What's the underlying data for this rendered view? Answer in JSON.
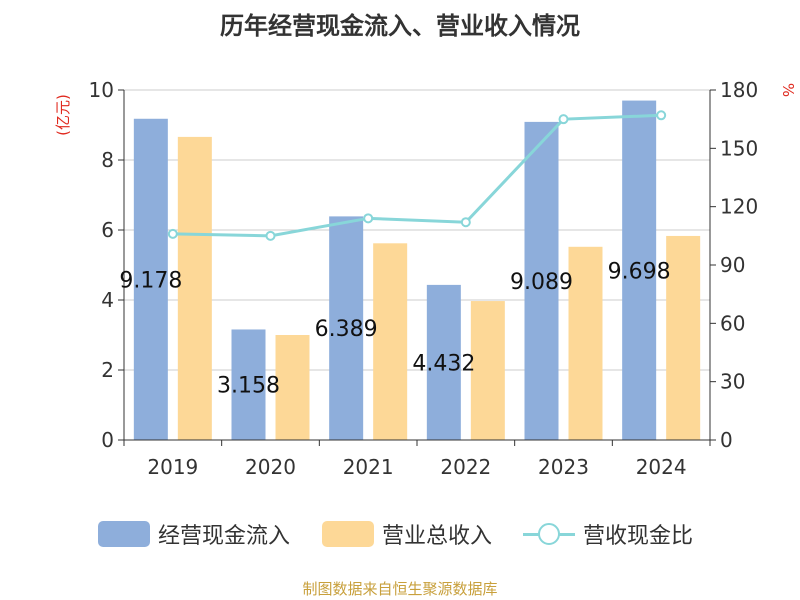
{
  "chart_data": {
    "type": "bar",
    "title": "历年经营现金流入、营业收入情况",
    "categories": [
      "2019",
      "2020",
      "2021",
      "2022",
      "2023",
      "2024"
    ],
    "series": [
      {
        "name": "经营现金流入",
        "type": "bar",
        "axis": "left",
        "color": "#8eaedb",
        "values": [
          9.178,
          3.158,
          6.389,
          4.432,
          9.089,
          9.698
        ]
      },
      {
        "name": "营业总收入",
        "type": "bar",
        "axis": "left",
        "color": "#fdd897",
        "values": [
          8.66,
          3.0,
          5.62,
          3.97,
          5.52,
          5.83
        ]
      },
      {
        "name": "营收现金比",
        "type": "line",
        "axis": "right",
        "color": "#88d6d9",
        "values": [
          106,
          105,
          114,
          112,
          165,
          167
        ]
      }
    ],
    "data_labels": [
      "9.178",
      "3.158",
      "6.389",
      "4.432",
      "9.089",
      "9.698"
    ],
    "y_left": {
      "label": "(亿元)",
      "min": 0,
      "max": 10,
      "ticks": [
        "0",
        "2",
        "4",
        "6",
        "8",
        "10"
      ]
    },
    "y_right": {
      "label": "%",
      "min": 0,
      "max": 180,
      "ticks": [
        "0",
        "30",
        "60",
        "90",
        "120",
        "150",
        "180"
      ]
    },
    "grid": true,
    "legend_position": "bottom"
  },
  "legend": {
    "items": [
      "经营现金流入",
      "营业总收入",
      "营收现金比"
    ]
  },
  "footer": {
    "source": "制图数据来自恒生聚源数据库"
  }
}
